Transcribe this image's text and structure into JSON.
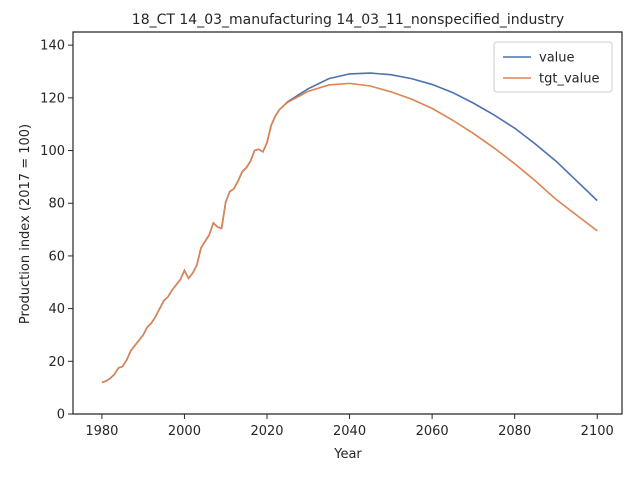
{
  "chart_data": {
    "type": "line",
    "title": "18_CT 14_03_manufacturing 14_03_11_nonspecified_industry",
    "x_label": "Year",
    "y_label": "Production index (2017 = 100)",
    "x": [
      1980,
      1981,
      1982,
      1983,
      1984,
      1985,
      1986,
      1987,
      1988,
      1989,
      1990,
      1991,
      1992,
      1993,
      1994,
      1995,
      1996,
      1997,
      1998,
      1999,
      2000,
      2001,
      2002,
      2003,
      2004,
      2005,
      2006,
      2007,
      2008,
      2009,
      2010,
      2011,
      2012,
      2013,
      2014,
      2015,
      2016,
      2017,
      2018,
      2019,
      2020,
      2021,
      2022,
      2023,
      2024,
      2025,
      2030,
      2035,
      2040,
      2045,
      2050,
      2055,
      2060,
      2065,
      2070,
      2075,
      2080,
      2085,
      2090,
      2095,
      2100
    ],
    "series": [
      {
        "name": "value",
        "color": "#4c72b0",
        "values": [
          12,
          12.5,
          13.5,
          15,
          17.5,
          18,
          20.5,
          24,
          26,
          28,
          30,
          33,
          34.5,
          37,
          40,
          43,
          44.5,
          47,
          49,
          51,
          54.5,
          51.5,
          53.5,
          56.5,
          63,
          65.5,
          68,
          72.5,
          71,
          70.5,
          80.5,
          84.5,
          85.5,
          88.5,
          92,
          93.5,
          96,
          100,
          100.5,
          99.5,
          103,
          109.5,
          113,
          115.5,
          117,
          118.5,
          123.5,
          127.3,
          129.1,
          129.4,
          128.8,
          127.3,
          125.1,
          122,
          118,
          113.5,
          108.5,
          102.5,
          96,
          88.5,
          81
        ]
      },
      {
        "name": "tgt_value",
        "color": "#dd8452",
        "values": [
          12,
          12.5,
          13.5,
          15,
          17.5,
          18,
          20.5,
          24,
          26,
          28,
          30,
          33,
          34.5,
          37,
          40,
          43,
          44.5,
          47,
          49,
          51,
          54.5,
          51.5,
          53.5,
          56.5,
          63,
          65.5,
          68,
          72.5,
          71,
          70.5,
          80.5,
          84.5,
          85.5,
          88.5,
          92,
          93.5,
          96,
          100,
          100.5,
          99.5,
          103,
          109.5,
          113,
          115.5,
          117,
          118.3,
          122.5,
          124.9,
          125.5,
          124.5,
          122.3,
          119.5,
          116,
          111.5,
          106.5,
          101,
          95,
          88.5,
          81.5,
          75.5,
          69.5
        ]
      }
    ],
    "xlim": [
      1973,
      2106
    ],
    "ylim": [
      0,
      145
    ],
    "xticks": [
      1980,
      2000,
      2020,
      2040,
      2060,
      2080,
      2100
    ],
    "yticks": [
      0,
      20,
      40,
      60,
      80,
      100,
      120,
      140
    ],
    "legend": "upper right",
    "grid": false
  }
}
